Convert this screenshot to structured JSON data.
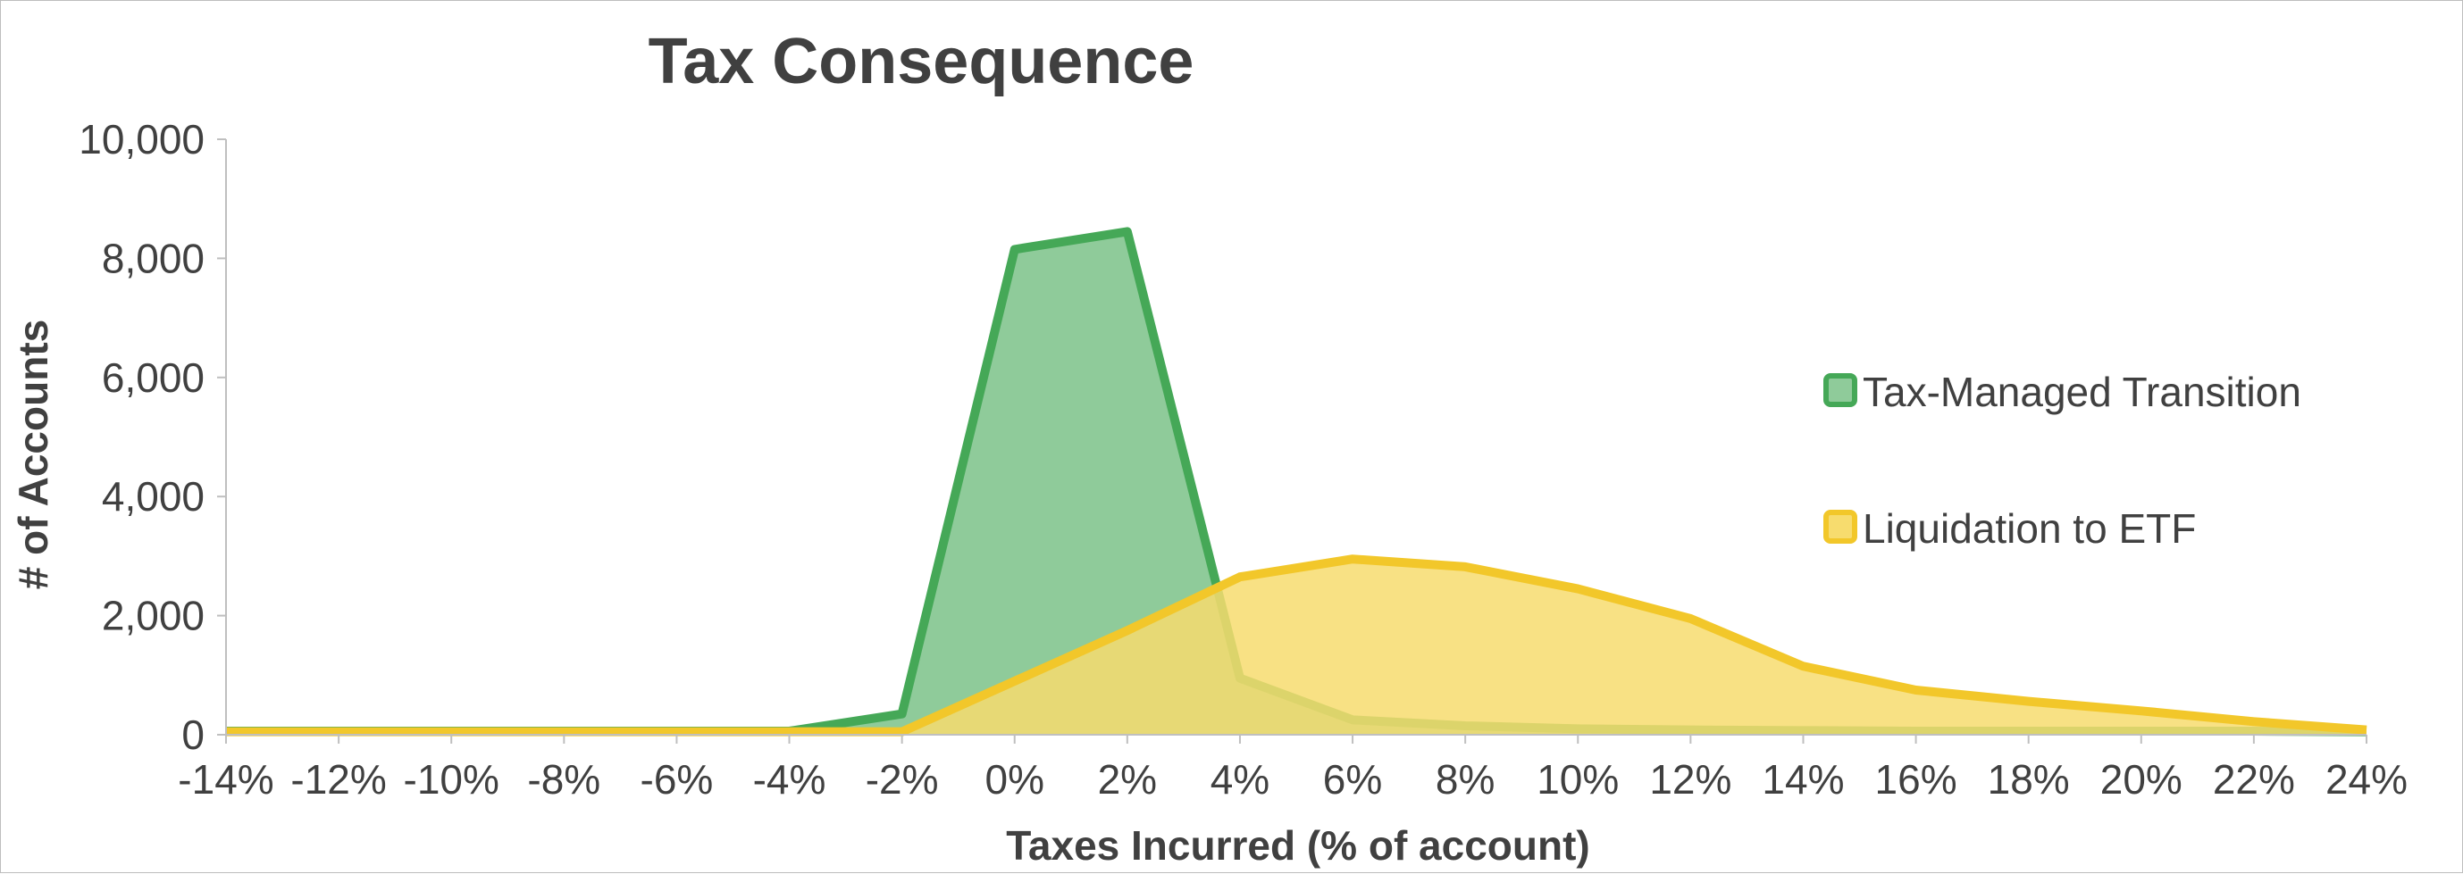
{
  "chart_data": {
    "type": "area",
    "title": "Tax Consequence",
    "xlabel": "Taxes Incurred (% of account)",
    "ylabel": "# of Accounts",
    "x": [
      -14,
      -12,
      -10,
      -8,
      -6,
      -4,
      -2,
      0,
      2,
      4,
      6,
      8,
      10,
      12,
      14,
      16,
      18,
      20,
      22,
      24
    ],
    "x_tick_labels": [
      "-14%",
      "-12%",
      "-10%",
      "-8%",
      "-6%",
      "-4%",
      "-2%",
      "0%",
      "2%",
      "4%",
      "6%",
      "8%",
      "10%",
      "12%",
      "14%",
      "16%",
      "18%",
      "20%",
      "22%",
      "24%"
    ],
    "y_tick_labels": [
      "0",
      "2,000",
      "4,000",
      "6,000",
      "8,000",
      "10,000"
    ],
    "y_ticks": [
      0,
      2000,
      4000,
      6000,
      8000,
      10000
    ],
    "xlim": [
      -14,
      24
    ],
    "ylim": [
      0,
      10000
    ],
    "grid": false,
    "legend_position": "right",
    "series": [
      {
        "name": "Tax-Managed Transition",
        "color": "#45A857",
        "fill": "#8FCB9A",
        "values": [
          60,
          60,
          60,
          60,
          60,
          60,
          350,
          8150,
          8450,
          950,
          250,
          150,
          100,
          80,
          70,
          60,
          60,
          60,
          60,
          50
        ]
      },
      {
        "name": "Liquidation to ETF",
        "color": "#F2C72A",
        "fill": "#F7DC6E",
        "values": [
          50,
          50,
          50,
          50,
          50,
          50,
          50,
          900,
          1750,
          2650,
          2950,
          2820,
          2450,
          1950,
          1150,
          750,
          560,
          400,
          220,
          80
        ]
      }
    ]
  }
}
